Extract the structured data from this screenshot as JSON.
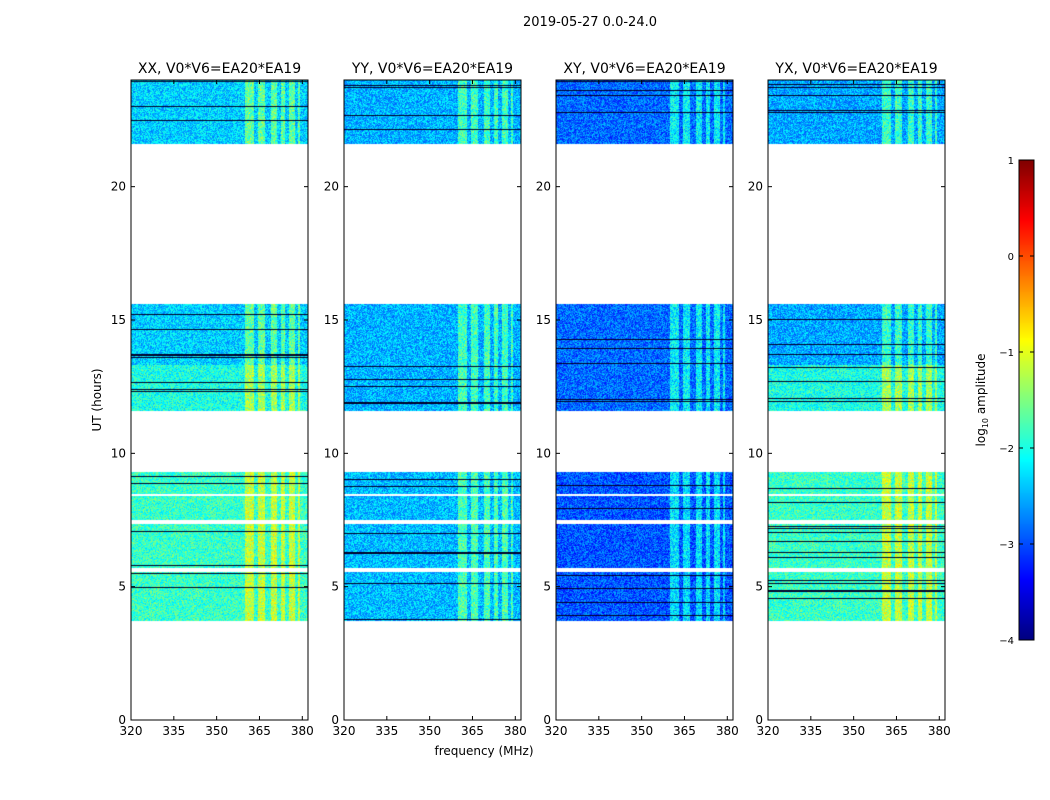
{
  "figure": {
    "suptitle": "2019-05-27 0.0-24.0"
  },
  "chart_data": {
    "type": "heatmap",
    "title": "2019-05-27 0.0-24.0",
    "xlabel": "frequency (MHz)",
    "ylabel": "UT (hours)",
    "xlim": [
      320,
      382
    ],
    "ylim": [
      0,
      24
    ],
    "xticks": [
      "320",
      "335",
      "350",
      "365",
      "380"
    ],
    "xtick_values": [
      320,
      335,
      350,
      365,
      380
    ],
    "yticks": [
      "0",
      "5",
      "10",
      "15",
      "20"
    ],
    "ytick_values": [
      0,
      5,
      10,
      15,
      20
    ],
    "panels": [
      {
        "title": "XX, V0*V6=EA20*EA19",
        "base_level": -2.35,
        "level_jump": [
          {
            "from": 11.6,
            "to": 13.3,
            "level": -2.0
          },
          {
            "from": 3.7,
            "to": 9.3,
            "level": -1.85
          }
        ]
      },
      {
        "title": "YY, V0*V6=EA20*EA19",
        "base_level": -2.5,
        "level_jump": [
          {
            "from": 3.7,
            "to": 9.3,
            "level": -2.45
          }
        ]
      },
      {
        "title": "XY, V0*V6=EA20*EA19",
        "base_level": -2.85,
        "level_jump": [
          {
            "from": 3.7,
            "to": 9.3,
            "level": -2.95
          }
        ]
      },
      {
        "title": "YX, V0*V6=EA20*EA19",
        "base_level": -2.55,
        "level_jump": [
          {
            "from": 11.6,
            "to": 13.3,
            "level": -2.0
          },
          {
            "from": 3.7,
            "to": 9.3,
            "level": -1.85
          }
        ]
      }
    ],
    "data_blocks_ut": [
      {
        "start": 21.6,
        "end": 24.0
      },
      {
        "start": 11.6,
        "end": 15.6
      },
      {
        "start": 3.7,
        "end": 9.3
      }
    ],
    "flagged_rows_ut": [
      5.6,
      5.65,
      7.4,
      7.45,
      8.45
    ],
    "rfi_band_mhz": [
      [
        360,
        363
      ],
      [
        364.5,
        367
      ],
      [
        369,
        371
      ],
      [
        372.5,
        374
      ],
      [
        375.5,
        377.5
      ],
      [
        378.5,
        379.2
      ]
    ],
    "colorbar": {
      "label": "log",
      "label_sub": "10",
      "label_suffix": " amplitude",
      "colormap": "jet",
      "vmin": -4,
      "vmax": 1,
      "ticks": [
        "−4",
        "−3",
        "−2",
        "−1",
        "0",
        "1"
      ],
      "tick_values": [
        -4,
        -3,
        -2,
        -1,
        0,
        1
      ]
    }
  }
}
